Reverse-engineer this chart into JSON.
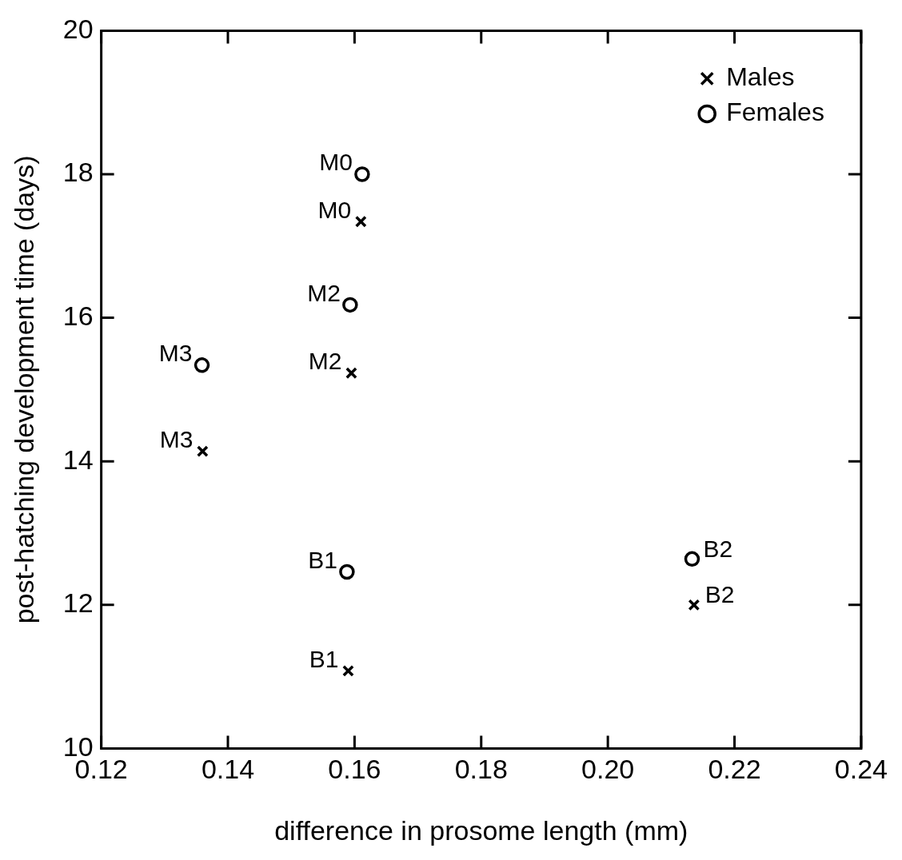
{
  "chart_data": {
    "type": "scatter",
    "xlabel": "difference in prosome length (mm)",
    "ylabel": "post-hatching development time (days)",
    "xlim": [
      0.12,
      0.24
    ],
    "xticks": [
      {
        "value": 0.12,
        "label": "0.12"
      },
      {
        "value": 0.14,
        "label": "0.14"
      },
      {
        "value": 0.16,
        "label": "0.16"
      },
      {
        "value": 0.18,
        "label": "0.18"
      },
      {
        "value": 0.2,
        "label": "0.20"
      },
      {
        "value": 0.22,
        "label": "0.22"
      },
      {
        "value": 0.24,
        "label": "0.24"
      }
    ],
    "ylim": [
      10,
      20
    ],
    "yticks": [
      10,
      12,
      14,
      16,
      18,
      20
    ],
    "grid": false,
    "legend": "top right",
    "series": [
      {
        "name": "Males",
        "color": "#000000",
        "marker": "cross",
        "x": [
          0.161,
          0.1595,
          0.136,
          0.159,
          0.2136
        ],
        "values": [
          17.34,
          15.23,
          14.14,
          11.08,
          12.0
        ]
      },
      {
        "name": "Females",
        "color": "#000000",
        "marker": "circle",
        "x": [
          0.1612,
          0.1593,
          0.1359,
          0.1588,
          0.2133
        ],
        "values": [
          18.0,
          16.18,
          15.34,
          12.46,
          12.64
        ]
      }
    ],
    "annotations": [
      {
        "text": "M0",
        "x": 0.161,
        "y": 17.34
      },
      {
        "text": "M2",
        "x": 0.1595,
        "y": 15.23
      },
      {
        "text": "M3",
        "x": 0.136,
        "y": 14.14
      },
      {
        "text": "B1",
        "x": 0.159,
        "y": 11.08
      },
      {
        "text": "B2",
        "x": 0.2136,
        "y": 12.0
      },
      {
        "text": "M0",
        "x": 0.1612,
        "y": 18.0
      },
      {
        "text": "M2",
        "x": 0.1593,
        "y": 16.18
      },
      {
        "text": "M3",
        "x": 0.1359,
        "y": 15.34
      },
      {
        "text": "B1",
        "x": 0.1588,
        "y": 12.46
      },
      {
        "text": "B2",
        "x": 0.2133,
        "y": 12.64
      }
    ]
  }
}
